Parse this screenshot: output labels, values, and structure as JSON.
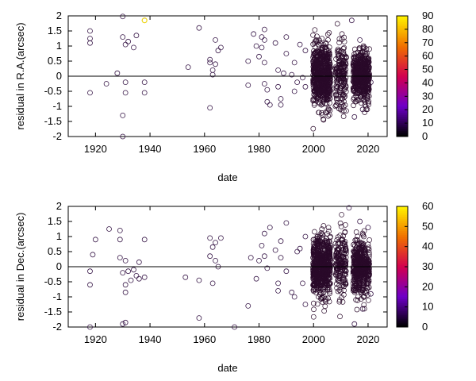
{
  "chart_data": [
    {
      "type": "scatter",
      "xlabel": "date",
      "ylabel": "residual in R.A.(arcsec)",
      "xlim": [
        1910,
        2027
      ],
      "ylim": [
        -2,
        2
      ],
      "xticks": [
        1920,
        1940,
        1960,
        1980,
        2000,
        2020
      ],
      "yticks": [
        -2,
        -1.5,
        -1,
        -0.5,
        0,
        0.5,
        1,
        1.5,
        2
      ],
      "colorbar": {
        "min": 0,
        "max": 90,
        "ticks": [
          0,
          10,
          20,
          30,
          40,
          50,
          60,
          70,
          80,
          90
        ]
      },
      "zero_line": true,
      "grid": false,
      "highlight_point": {
        "x": 1938,
        "y": 1.85,
        "c": 88
      },
      "points": [
        [
          1918,
          1.5
        ],
        [
          1918,
          1.25
        ],
        [
          1918,
          1.1
        ],
        [
          1918,
          -0.55
        ],
        [
          1924,
          -0.25
        ],
        [
          1928,
          0.1
        ],
        [
          1930,
          1.98
        ],
        [
          1930,
          1.3
        ],
        [
          1931,
          1.05
        ],
        [
          1931,
          -0.2
        ],
        [
          1931,
          -0.55
        ],
        [
          1932,
          1.15
        ],
        [
          1934,
          0.95
        ],
        [
          1935,
          1.35
        ],
        [
          1930,
          -1.3
        ],
        [
          1930,
          -2.0
        ],
        [
          1938,
          1.85
        ],
        [
          1938,
          -0.2
        ],
        [
          1938,
          -0.55
        ],
        [
          1954,
          0.3
        ],
        [
          1958,
          1.6
        ],
        [
          1962,
          0.55
        ],
        [
          1962,
          0.45
        ],
        [
          1963,
          0.2
        ],
        [
          1963,
          0.05
        ],
        [
          1964,
          1.2
        ],
        [
          1964,
          0.4
        ],
        [
          1965,
          0.85
        ],
        [
          1966,
          0.95
        ],
        [
          1962,
          -1.05
        ],
        [
          1976,
          0.5
        ],
        [
          1976,
          -0.3
        ],
        [
          1978,
          1.4
        ],
        [
          1979,
          1.0
        ],
        [
          1980,
          0.65
        ],
        [
          1981,
          1.3
        ],
        [
          1981,
          0.95
        ],
        [
          1982,
          1.55
        ],
        [
          1982,
          1.2
        ],
        [
          1982,
          0.45
        ],
        [
          1982,
          -0.25
        ],
        [
          1983,
          -0.45
        ],
        [
          1983,
          -0.85
        ],
        [
          1984,
          -0.95
        ],
        [
          1986,
          1.1
        ],
        [
          1987,
          0.2
        ],
        [
          1987,
          -0.35
        ],
        [
          1988,
          -0.75
        ],
        [
          1988,
          -0.95
        ],
        [
          1989,
          0.1
        ],
        [
          1990,
          1.3
        ],
        [
          1990,
          0.75
        ],
        [
          1992,
          0.05
        ],
        [
          1993,
          0.45
        ],
        [
          1993,
          -0.5
        ],
        [
          1994,
          -0.2
        ],
        [
          1995,
          1.05
        ],
        [
          1996,
          -0.05
        ],
        [
          1997,
          0.85
        ],
        [
          1997,
          -0.35
        ],
        [
          2014,
          1.85
        ],
        [
          2015,
          -1.35
        ],
        [
          2017,
          1.2
        ],
        [
          2018,
          -1.1
        ],
        [
          2021,
          -0.2
        ]
      ]
    },
    {
      "type": "scatter",
      "xlabel": "date",
      "ylabel": "residual in Dec.(arcsec)",
      "xlim": [
        1910,
        2027
      ],
      "ylim": [
        -2,
        2
      ],
      "xticks": [
        1920,
        1940,
        1960,
        1980,
        2000,
        2020
      ],
      "yticks": [
        -2,
        -1.5,
        -1,
        -0.5,
        0,
        0.5,
        1,
        1.5,
        2
      ],
      "colorbar": {
        "min": 0,
        "max": 60,
        "ticks": [
          0,
          10,
          20,
          30,
          40,
          50,
          60
        ]
      },
      "zero_line": true,
      "grid": false,
      "points": [
        [
          1918,
          -2.0
        ],
        [
          1918,
          -0.15
        ],
        [
          1918,
          -0.6
        ],
        [
          1919,
          0.4
        ],
        [
          1920,
          0.9
        ],
        [
          1925,
          1.25
        ],
        [
          1929,
          1.2
        ],
        [
          1929,
          0.9
        ],
        [
          1929,
          0.3
        ],
        [
          1930,
          -1.9
        ],
        [
          1931,
          -1.85
        ],
        [
          1931,
          0.2
        ],
        [
          1930,
          -0.2
        ],
        [
          1931,
          -0.6
        ],
        [
          1931,
          -0.85
        ],
        [
          1932,
          -0.15
        ],
        [
          1933,
          -0.45
        ],
        [
          1934,
          -0.1
        ],
        [
          1935,
          -0.3
        ],
        [
          1936,
          0.15
        ],
        [
          1936,
          -0.4
        ],
        [
          1938,
          0.9
        ],
        [
          1938,
          -0.35
        ],
        [
          1953,
          -0.35
        ],
        [
          1958,
          -0.45
        ],
        [
          1958,
          -1.7
        ],
        [
          1962,
          0.95
        ],
        [
          1962,
          0.35
        ],
        [
          1963,
          0.65
        ],
        [
          1963,
          -0.55
        ],
        [
          1964,
          0.8
        ],
        [
          1964,
          0.2
        ],
        [
          1965,
          0.0
        ],
        [
          1966,
          0.95
        ],
        [
          1971,
          -2.0
        ],
        [
          1976,
          -1.3
        ],
        [
          1977,
          0.3
        ],
        [
          1979,
          -0.4
        ],
        [
          1980,
          0.2
        ],
        [
          1981,
          0.7
        ],
        [
          1982,
          1.1
        ],
        [
          1982,
          0.35
        ],
        [
          1983,
          -0.05
        ],
        [
          1984,
          1.3
        ],
        [
          1986,
          0.55
        ],
        [
          1987,
          -0.55
        ],
        [
          1987,
          -0.8
        ],
        [
          1988,
          0.3
        ],
        [
          1988,
          0.85
        ],
        [
          1990,
          1.45
        ],
        [
          1990,
          -0.15
        ],
        [
          1992,
          -0.85
        ],
        [
          1993,
          -1.0
        ],
        [
          1994,
          0.5
        ],
        [
          1995,
          0.6
        ],
        [
          1996,
          -0.55
        ],
        [
          1997,
          1.0
        ],
        [
          1997,
          -1.25
        ],
        [
          2013,
          1.95
        ],
        [
          2015,
          -1.9
        ],
        [
          2017,
          1.5
        ],
        [
          2018,
          -1.4
        ],
        [
          2020,
          1.3
        ],
        [
          2021,
          -0.9
        ]
      ]
    }
  ]
}
